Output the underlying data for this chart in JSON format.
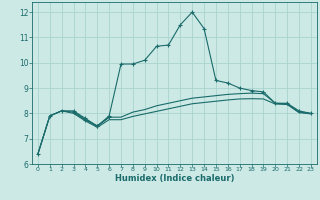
{
  "xlabel": "Humidex (Indice chaleur)",
  "bg_color": "#cce9e5",
  "grid_color": "#aad4cf",
  "line_color": "#1a6b6b",
  "ylim": [
    6,
    12.4
  ],
  "xlim": [
    -0.5,
    23.5
  ],
  "yticks": [
    6,
    7,
    8,
    9,
    10,
    11,
    12
  ],
  "xticks": [
    0,
    1,
    2,
    3,
    4,
    5,
    6,
    7,
    8,
    9,
    10,
    11,
    12,
    13,
    14,
    15,
    16,
    17,
    18,
    19,
    20,
    21,
    22,
    23
  ],
  "series1_x": [
    0,
    1,
    2,
    3,
    4,
    5,
    6,
    7,
    8,
    9,
    10,
    11,
    12,
    13,
    14,
    15,
    16,
    17,
    18,
    19,
    20,
    21,
    22,
    23
  ],
  "series1_y": [
    6.4,
    7.9,
    8.1,
    8.1,
    7.8,
    7.5,
    7.9,
    9.95,
    9.95,
    10.1,
    10.65,
    10.7,
    11.5,
    12.0,
    11.35,
    9.3,
    9.2,
    9.0,
    8.9,
    8.85,
    8.4,
    8.4,
    8.1,
    8.0
  ],
  "series2_x": [
    0,
    1,
    2,
    3,
    4,
    5,
    6,
    7,
    8,
    9,
    10,
    11,
    12,
    13,
    14,
    15,
    16,
    17,
    18,
    19,
    20,
    21,
    22,
    23
  ],
  "series2_y": [
    6.4,
    7.9,
    8.1,
    8.05,
    7.75,
    7.5,
    7.85,
    7.85,
    8.05,
    8.15,
    8.3,
    8.4,
    8.5,
    8.6,
    8.65,
    8.7,
    8.75,
    8.78,
    8.8,
    8.78,
    8.4,
    8.38,
    8.05,
    8.0
  ],
  "series3_x": [
    0,
    1,
    2,
    3,
    4,
    5,
    6,
    7,
    8,
    9,
    10,
    11,
    12,
    13,
    14,
    15,
    16,
    17,
    18,
    19,
    20,
    21,
    22,
    23
  ],
  "series3_y": [
    6.4,
    7.9,
    8.1,
    8.0,
    7.7,
    7.45,
    7.75,
    7.75,
    7.88,
    7.98,
    8.08,
    8.18,
    8.28,
    8.38,
    8.43,
    8.48,
    8.53,
    8.57,
    8.58,
    8.57,
    8.37,
    8.35,
    8.03,
    7.98
  ],
  "series4_x": [
    3,
    4,
    5,
    6
  ],
  "series4_y": [
    8.05,
    7.75,
    7.5,
    7.85
  ]
}
